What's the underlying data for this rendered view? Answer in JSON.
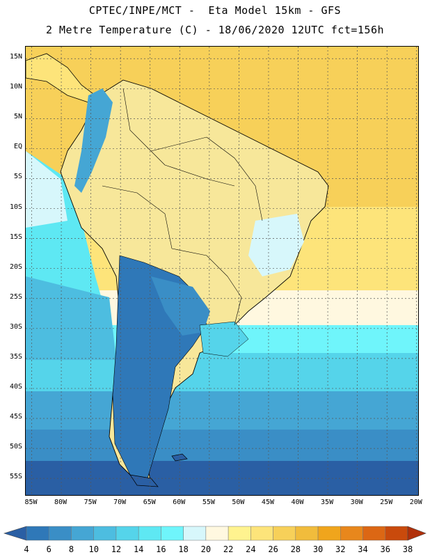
{
  "header": {
    "title_line1": "CPTEC/INPE/MCT -  Eta Model 15km - GFS",
    "title_line2": "2 Metre Temperature (C) - 18/06/2020 12UTC fct=156h"
  },
  "map": {
    "lat_labels": [
      "15N",
      "10N",
      "5N",
      "EQ",
      "5S",
      "10S",
      "15S",
      "20S",
      "25S",
      "30S",
      "35S",
      "40S",
      "45S",
      "50S",
      "55S"
    ],
    "lon_labels": [
      "85W",
      "80W",
      "75W",
      "70W",
      "65W",
      "60W",
      "55W",
      "50W",
      "45W",
      "40W",
      "35W",
      "30W",
      "25W",
      "20W"
    ],
    "extent": {
      "lon_min": -86,
      "lon_max": -19.5,
      "lat_min": -58,
      "lat_max": 17
    },
    "land_color": "#f7e79a",
    "ocean_north_color": "#f5d060"
  },
  "legend": {
    "levels": [
      "4",
      "6",
      "8",
      "10",
      "12",
      "14",
      "16",
      "18",
      "20",
      "22",
      "24",
      "26",
      "28",
      "30",
      "32",
      "34",
      "36",
      "38"
    ],
    "colors": [
      "#2a5fa4",
      "#2f78b8",
      "#3a8ec6",
      "#45a6d4",
      "#4dbde0",
      "#55d4ea",
      "#5ee8f3",
      "#6ff5fb",
      "#d7f7fb",
      "#fff8e0",
      "#fff38f",
      "#fde47a",
      "#f7d059",
      "#f1bc3c",
      "#f0a51c",
      "#e8871c",
      "#dc6714",
      "#c94a0c",
      "#b0300a"
    ]
  }
}
